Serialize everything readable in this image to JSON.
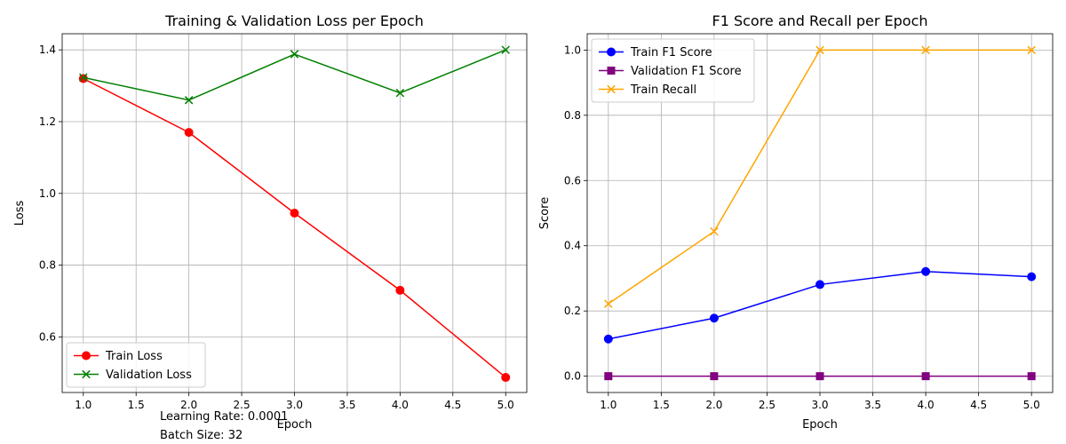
{
  "charts": [
    {
      "type": "line",
      "title": "Training & Validation Loss per Epoch",
      "xlabel": "Epoch",
      "ylabel": "Loss",
      "x": [
        1,
        2,
        3,
        4,
        5
      ],
      "xlim": [
        0.8,
        5.2
      ],
      "ylim": [
        0.445,
        1.445
      ],
      "xticks": [
        1.0,
        1.5,
        2.0,
        2.5,
        3.0,
        3.5,
        4.0,
        4.5,
        5.0
      ],
      "xtick_labels": [
        "1.0",
        "1.5",
        "2.0",
        "2.5",
        "3.0",
        "3.5",
        "4.0",
        "4.5",
        "5.0"
      ],
      "yticks": [
        0.6,
        0.8,
        1.0,
        1.2,
        1.4
      ],
      "ytick_labels": [
        "0.6",
        "0.8",
        "1.0",
        "1.2",
        "1.4"
      ],
      "grid": true,
      "legend_position": "lower-left",
      "series": [
        {
          "name": "Train Loss",
          "values": [
            1.32,
            1.17,
            0.945,
            0.73,
            0.487
          ],
          "color": "#ff0000",
          "marker": "circle"
        },
        {
          "name": "Validation Loss",
          "values": [
            1.323,
            1.26,
            1.388,
            1.28,
            1.4
          ],
          "color": "#008000",
          "marker": "x"
        }
      ]
    },
    {
      "type": "line",
      "title": "F1 Score and Recall per Epoch",
      "xlabel": "Epoch",
      "ylabel": "Score",
      "x": [
        1,
        2,
        3,
        4,
        5
      ],
      "xlim": [
        0.8,
        5.2
      ],
      "ylim": [
        -0.05,
        1.05
      ],
      "xticks": [
        1.0,
        1.5,
        2.0,
        2.5,
        3.0,
        3.5,
        4.0,
        4.5,
        5.0
      ],
      "xtick_labels": [
        "1.0",
        "1.5",
        "2.0",
        "2.5",
        "3.0",
        "3.5",
        "4.0",
        "4.5",
        "5.0"
      ],
      "yticks": [
        0.0,
        0.2,
        0.4,
        0.6,
        0.8,
        1.0
      ],
      "ytick_labels": [
        "0.0",
        "0.2",
        "0.4",
        "0.6",
        "0.8",
        "1.0"
      ],
      "grid": true,
      "legend_position": "upper-left",
      "series": [
        {
          "name": "Train F1 Score",
          "values": [
            0.114,
            0.178,
            0.281,
            0.321,
            0.305
          ],
          "color": "#0000ff",
          "marker": "circle"
        },
        {
          "name": "Validation F1 Score",
          "values": [
            0.0,
            0.0,
            0.0,
            0.0,
            0.0
          ],
          "color": "#800080",
          "marker": "square"
        },
        {
          "name": "Train Recall",
          "values": [
            0.222,
            0.444,
            1.0,
            1.0,
            1.0
          ],
          "color": "#ffa500",
          "marker": "x"
        }
      ]
    }
  ],
  "notes": {
    "learning_rate": "Learning Rate: 0.0001",
    "batch_size": "Batch Size: 32"
  }
}
